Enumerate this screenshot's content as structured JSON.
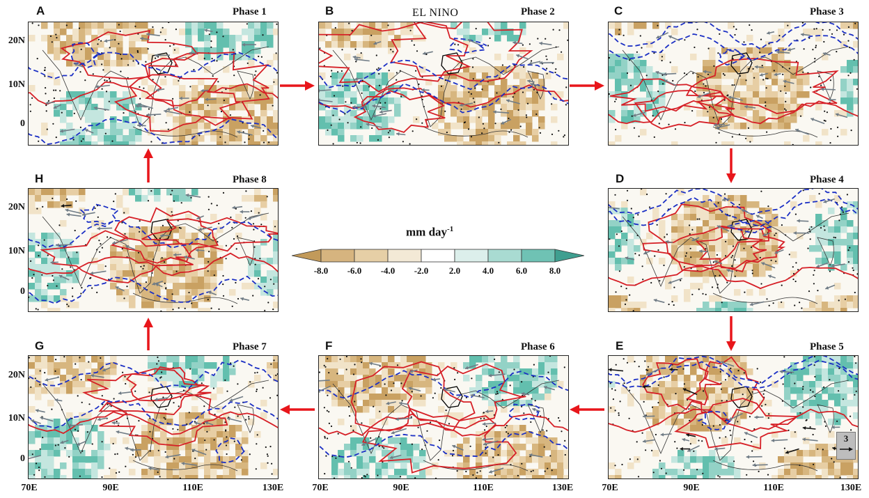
{
  "figure_title": "EL NINO",
  "panels": [
    {
      "letter": "A",
      "phase": "Phase 1"
    },
    {
      "letter": "B",
      "phase": "Phase 2"
    },
    {
      "letter": "C",
      "phase": "Phase 3"
    },
    {
      "letter": "D",
      "phase": "Phase 4"
    },
    {
      "letter": "E",
      "phase": "Phase 5"
    },
    {
      "letter": "F",
      "phase": "Phase 6"
    },
    {
      "letter": "G",
      "phase": "Phase 7"
    },
    {
      "letter": "H",
      "phase": "Phase 8"
    }
  ],
  "y_ticks": [
    "20N",
    "10N",
    "0"
  ],
  "x_ticks": [
    "70E",
    "90E",
    "110E",
    "130E"
  ],
  "x_tick_last_panel_e": "130E",
  "colorbar": {
    "unit": "mm day",
    "unit_exponent": "-1",
    "labels": [
      "-8.0",
      "-6.0",
      "-4.0",
      "-2.0",
      "2.0",
      "4.0",
      "6.0",
      "8.0"
    ],
    "colors": [
      "#c29a5a",
      "#d6b47f",
      "#e6cfa6",
      "#f3e9d6",
      "#ffffff",
      "#dcefeb",
      "#a9dbd2",
      "#6fc2b4",
      "#3f9f90"
    ]
  },
  "reference_vector_label": "3",
  "colors": {
    "positive_contour": "#d61f26",
    "negative_contour": "#1b2fc4",
    "arrow_cycle": "#e8161b",
    "wind_vector": "#6f7b85",
    "coast": "#333333",
    "dry": "#c9a162",
    "wet": "#63bfae"
  }
}
